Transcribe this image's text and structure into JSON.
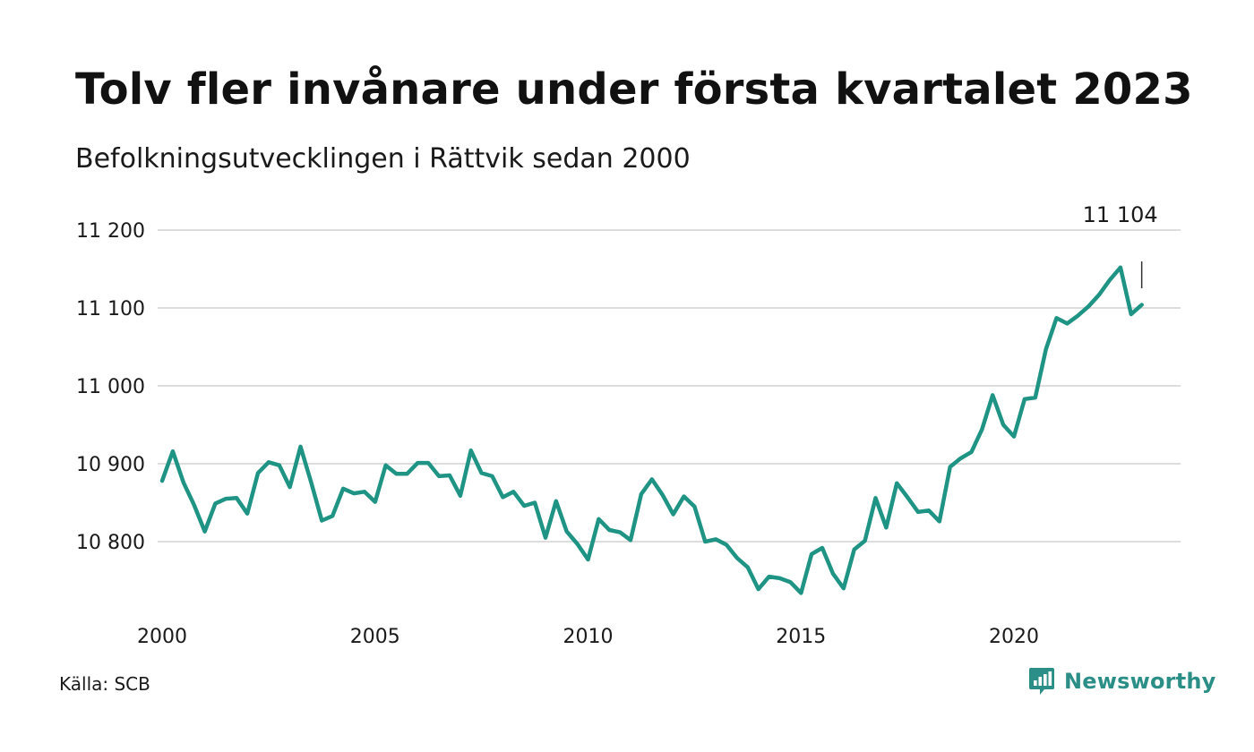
{
  "title": "Tolv fler invånare under första kvartalet 2023",
  "subtitle": "Befolkningsutvecklingen i Rättvik sedan 2000",
  "source": "Källa: SCB",
  "brand": {
    "name": "Newsworthy",
    "color": "#2b8f87",
    "icon": "newsworthy-logo-icon"
  },
  "colors": {
    "line": "#1f9484",
    "grid": "#dddddd",
    "text": "#1a1a1a"
  },
  "chart_data": {
    "type": "line",
    "title": "Tolv fler invånare under första kvartalet 2023",
    "subtitle": "Befolkningsutvecklingen i Rättvik sedan 2000",
    "xlabel": "",
    "ylabel": "",
    "x_start": 2000,
    "x_step": 0.25,
    "x_ticks": [
      2000,
      2005,
      2010,
      2015,
      2020
    ],
    "x_tick_labels": [
      "2000",
      "2005",
      "2010",
      "2015",
      "2020"
    ],
    "y_ticks": [
      10800,
      10900,
      11000,
      11100,
      11200
    ],
    "y_tick_labels": [
      "10 800",
      "10 900",
      "11 000",
      "11 100",
      "11 200"
    ],
    "xlim": [
      2000,
      2023.25
    ],
    "ylim": [
      10725,
      11215
    ],
    "grid": "horizontal",
    "series": [
      {
        "values": [
          10878,
          10916,
          10876,
          10847,
          10813,
          10849,
          10855,
          10856,
          10836,
          10888,
          10902,
          10898,
          10870,
          10922,
          10876,
          10827,
          10833,
          10868,
          10862,
          10864,
          10851,
          10898,
          10887,
          10887,
          10901,
          10901,
          10884,
          10885,
          10859,
          10917,
          10888,
          10884,
          10857,
          10864,
          10846,
          10850,
          10805,
          10852,
          10813,
          10797,
          10777,
          10829,
          10815,
          10812,
          10802,
          10861,
          10880,
          10860,
          10835,
          10858,
          10845,
          10800,
          10803,
          10796,
          10779,
          10767,
          10739,
          10755,
          10753,
          10748,
          10734,
          10784,
          10792,
          10759,
          10740,
          10790,
          10801,
          10856,
          10818,
          10875,
          10857,
          10838,
          10840,
          10826,
          10896,
          10907,
          10915,
          10944,
          10988,
          10950,
          10935,
          10983,
          10985,
          11047,
          11087,
          11080,
          11090,
          11102,
          11117,
          11136,
          11152,
          11092,
          11104
        ]
      }
    ],
    "annotations": [
      {
        "x": 2023,
        "value": 11104,
        "label": "11 104"
      }
    ]
  }
}
